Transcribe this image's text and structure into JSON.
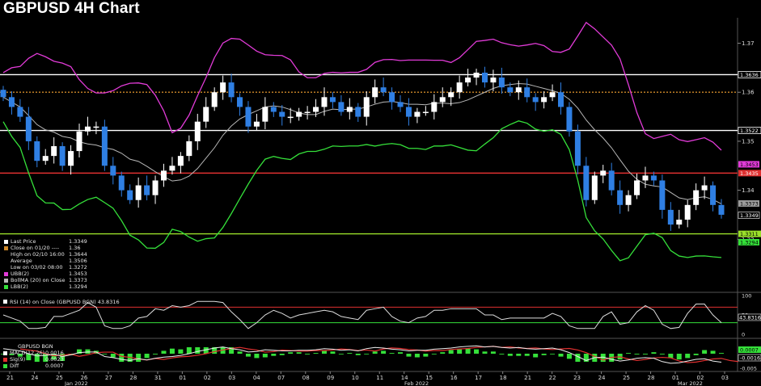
{
  "title": "GBPUSD 4H Chart",
  "colors": {
    "bg": "#000000",
    "up": "#ffffff",
    "down": "#2f7fe3",
    "ubb": "#e23bd8",
    "lbb": "#35e03a",
    "boll": "#b8b8b8",
    "grid": "#3a3a3a"
  },
  "chart_data": {
    "type": "candlestick",
    "instrument": "GBPUSD",
    "ylim": [
      1.3195,
      1.3752
    ],
    "y_ticks": [
      "1.37",
      "1.36",
      "1.35",
      "1.34",
      "1.33"
    ],
    "x_ticks": [
      "21",
      "24",
      "25",
      "26",
      "27",
      "28",
      "31",
      "01",
      "02",
      "03",
      "04",
      "07",
      "08",
      "09",
      "10",
      "11",
      "14",
      "15",
      "16",
      "17",
      "18",
      "21",
      "22",
      "23",
      "24",
      "25",
      "28",
      "01",
      "02",
      "03"
    ],
    "x_month_labels": [
      "Jan 2022",
      "Feb 2022",
      "Mar 2022"
    ],
    "horizontal_lines": [
      {
        "name": "White line 1",
        "value": 1.3636,
        "color": "#ffffff",
        "label": "1.3636"
      },
      {
        "name": "Close on 01/20",
        "value": 1.36,
        "color": "#d08a2a",
        "dashed": true
      },
      {
        "name": "White line 2",
        "value": 1.3522,
        "color": "#ffffff",
        "label": "1.3522"
      },
      {
        "name": "Red line",
        "value": 1.3435,
        "color": "#e03030",
        "label": "1.3435"
      },
      {
        "name": "Green line",
        "value": 1.3311,
        "color": "#9ae02a",
        "label": "1.3311"
      }
    ],
    "price_tags": [
      {
        "label": "1.3453",
        "value": 1.3453,
        "color": "#e23bd8"
      },
      {
        "label": "1.3373",
        "value": 1.3373,
        "color": "#9a9a9a"
      },
      {
        "label": "1.3349",
        "value": 1.3349,
        "color": "#000000"
      },
      {
        "label": "1.3294",
        "value": 1.3294,
        "color": "#35e03a"
      }
    ],
    "close_series": [
      1.359,
      1.357,
      1.355,
      1.35,
      1.346,
      1.347,
      1.349,
      1.345,
      1.348,
      1.352,
      1.353,
      1.353,
      1.345,
      1.343,
      1.34,
      1.338,
      1.341,
      1.339,
      1.342,
      1.344,
      1.345,
      1.347,
      1.35,
      1.354,
      1.357,
      1.36,
      1.362,
      1.359,
      1.357,
      1.353,
      1.354,
      1.357,
      1.356,
      1.355,
      1.355,
      1.356,
      1.356,
      1.357,
      1.359,
      1.358,
      1.356,
      1.357,
      1.355,
      1.359,
      1.361,
      1.36,
      1.358,
      1.357,
      1.355,
      1.356,
      1.356,
      1.358,
      1.359,
      1.36,
      1.362,
      1.363,
      1.364,
      1.362,
      1.363,
      1.361,
      1.36,
      1.361,
      1.359,
      1.358,
      1.359,
      1.36,
      1.357,
      1.352,
      1.345,
      1.338,
      1.343,
      1.344,
      1.34,
      1.337,
      1.339,
      1.342,
      1.343,
      1.342,
      1.336,
      1.333,
      1.334,
      1.337,
      1.34,
      1.341,
      1.337,
      1.335
    ],
    "legend": [
      {
        "label": "Last Price",
        "value": "1.3349",
        "color": "#ffffff"
      },
      {
        "label": "Close on 01/20 ----",
        "value": "1.36",
        "color": "#d08a2a"
      },
      {
        "label": "High on 02/10 16:00",
        "value": "1.3644",
        "color": ""
      },
      {
        "label": "Average",
        "value": "1.3506",
        "color": ""
      },
      {
        "label": "Low on 03/02 08:00",
        "value": "1.3272",
        "color": ""
      },
      {
        "label": "UBB(2)",
        "value": "1.3453",
        "color": "#e23bd8"
      },
      {
        "label": "BollMA (20)  on Close",
        "value": "1.3373",
        "color": "#b8b8b8"
      },
      {
        "label": "LBB(2)",
        "value": "1.3294",
        "color": "#35e03a"
      }
    ],
    "rsi": {
      "label": "RSI (14)  on Close (GBPUSD BGN) 43.8316",
      "current": "43.8316",
      "ylim": [
        0,
        100
      ],
      "ticks": [
        "100",
        "50",
        "0"
      ],
      "overbought": 70,
      "oversold": 30
    },
    "macd": {
      "header": "GBPUSD BGN",
      "legend": [
        {
          "label": "MACD(12,26)",
          "value": "0.0016",
          "color": "#ffffff"
        },
        {
          "label": "Sig(9)",
          "value": "0.0023",
          "color": "#e03030"
        },
        {
          "label": "Diff",
          "value": "0.0007",
          "color": "#35e03a"
        }
      ],
      "ticks": [
        "0.0007",
        "-0.0016",
        "-0.005"
      ]
    }
  }
}
